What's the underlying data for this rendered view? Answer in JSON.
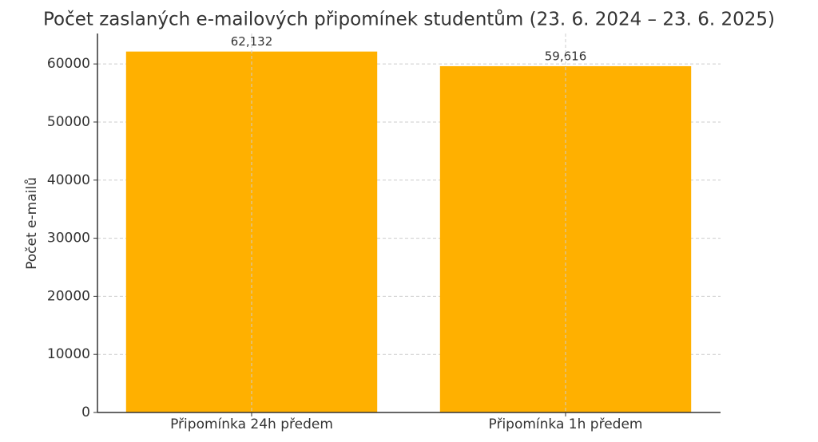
{
  "chart_data": {
    "type": "bar",
    "title": "Počet zaslaných e-mailových připomínek studentům (23. 6. 2024 – 23. 6. 2025)",
    "y_label": "Počet e-mailů",
    "categories": [
      "Připomínka 24h předem",
      "Připomínka 1h předem"
    ],
    "values": [
      62132,
      59616
    ],
    "value_labels": [
      "62,132",
      "59,616"
    ],
    "color": "#ffb000",
    "ylim": [
      0,
      65239
    ],
    "yticks": [
      0,
      10000,
      20000,
      30000,
      40000,
      50000,
      60000
    ],
    "grid": true
  }
}
